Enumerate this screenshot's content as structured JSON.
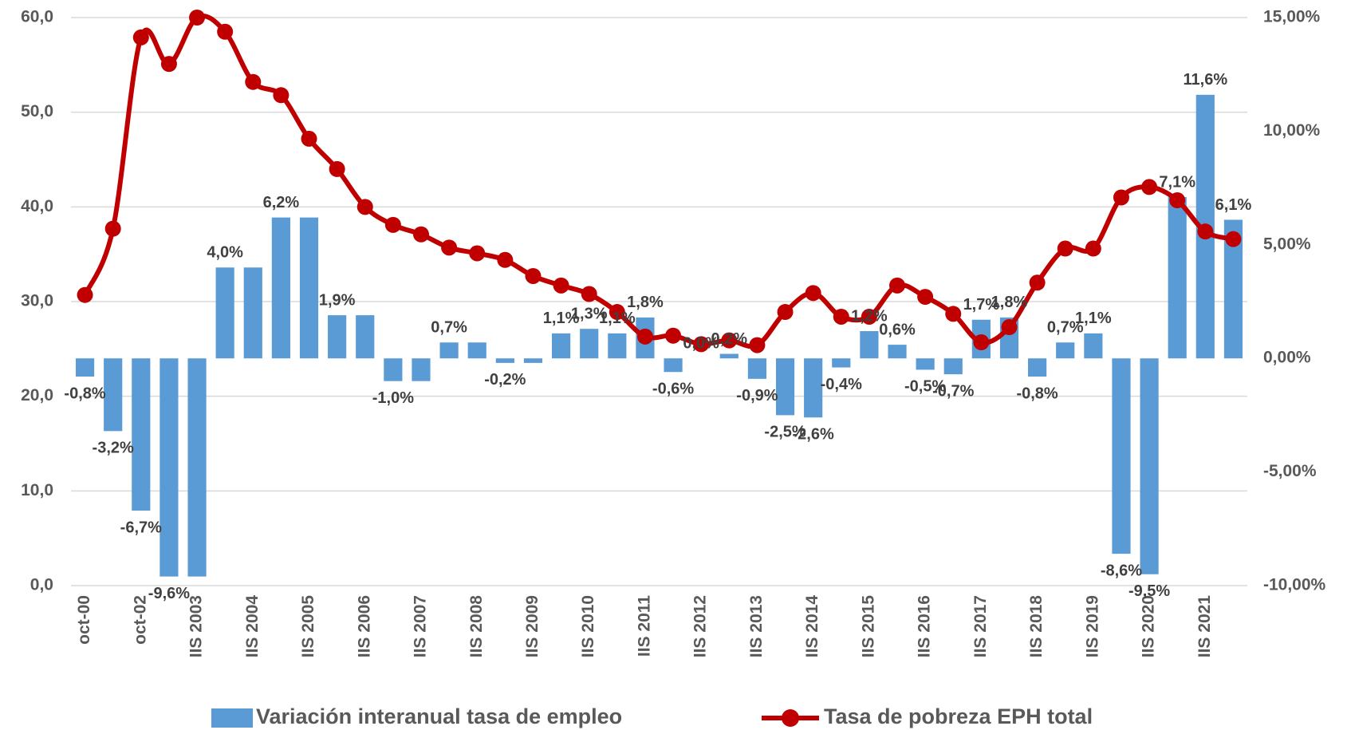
{
  "chart_data": {
    "type": "bar_line",
    "categories": [
      "oct-00",
      null,
      "oct-02",
      null,
      "IIS 2003",
      null,
      "IIS 2004",
      null,
      "IIS 2005",
      null,
      "IIS 2006",
      null,
      "IIS 2007",
      null,
      "IIS 2008",
      null,
      "IIS 2009",
      null,
      "IIS 2010",
      null,
      "IIS 2011",
      null,
      "IIS 2012",
      null,
      "IIS 2013",
      null,
      "IIS 2014",
      null,
      "IIS 2015",
      null,
      "IIS 2016",
      null,
      "IIS 2017",
      null,
      "IIS 2018",
      null,
      "IIS 2019",
      null,
      "IIS 2020",
      null,
      "IIS 2021",
      null
    ],
    "series": [
      {
        "name": "Variación interanual tasa de empleo",
        "type": "bar",
        "axis": "y2",
        "color": "#5b9bd5",
        "values": [
          -0.8,
          -3.2,
          -6.7,
          -9.6,
          -9.6,
          4.0,
          4.0,
          6.2,
          6.2,
          1.9,
          1.9,
          -1.0,
          -1.0,
          0.7,
          0.7,
          -0.2,
          -0.2,
          1.1,
          1.3,
          1.1,
          1.8,
          -0.6,
          0.0,
          0.2,
          -0.9,
          -2.5,
          -2.6,
          -0.4,
          1.2,
          0.6,
          -0.5,
          -0.7,
          1.7,
          1.8,
          -0.8,
          0.7,
          1.1,
          -8.6,
          -9.5,
          7.1,
          11.6,
          6.1
        ],
        "value_labels": [
          "-0,8%",
          "-3,2%",
          "-6,7%",
          "-9,6%",
          null,
          "4,0%",
          null,
          "6,2%",
          null,
          "1,9%",
          null,
          "-1,0%",
          null,
          "0,7%",
          null,
          "-0,2%",
          null,
          "1,1%",
          "1,3%",
          "1,1%",
          "1,8%",
          "-0,6%",
          "0,0%",
          "0,2%",
          "-0,9%",
          "-2,5%",
          "-2,6%",
          "-0,4%",
          "1,2%",
          "0,6%",
          "-0,5%",
          "-0,7%",
          "1,7%",
          "1,8%",
          "-0,8%",
          "0,7%",
          "1,1%",
          "-8,6%",
          "-9,5%",
          "7,1%",
          "11,6%",
          "6,1%"
        ]
      },
      {
        "name": "Tasa de pobreza EPH total",
        "type": "line",
        "axis": "y",
        "color": "#c00000",
        "values": [
          30.7,
          37.7,
          57.9,
          55.1,
          60.0,
          58.5,
          53.2,
          51.8,
          47.2,
          44.0,
          40.0,
          38.1,
          37.1,
          35.7,
          35.1,
          34.4,
          32.7,
          31.7,
          30.8,
          28.9,
          26.3,
          26.4,
          25.5,
          25.9,
          25.4,
          28.9,
          30.9,
          28.4,
          28.4,
          31.7,
          30.5,
          28.7,
          25.7,
          27.3,
          32.0,
          35.6,
          35.6,
          41.0,
          42.1,
          40.7,
          37.4,
          36.6
        ]
      }
    ],
    "ylim": [
      0,
      60
    ],
    "yticks": [
      {
        "value": 0,
        "label": "0,0"
      },
      {
        "value": 10,
        "label": "10,0"
      },
      {
        "value": 20,
        "label": "20,0"
      },
      {
        "value": 30,
        "label": "30,0"
      },
      {
        "value": 40,
        "label": "40,0"
      },
      {
        "value": 50,
        "label": "50,0"
      },
      {
        "value": 60,
        "label": "60,0"
      }
    ],
    "y2lim": [
      -10,
      15
    ],
    "y2ticks": [
      {
        "value": -10,
        "label": "-10,00%"
      },
      {
        "value": -5,
        "label": "-5,00%"
      },
      {
        "value": 0,
        "label": "0,00%"
      },
      {
        "value": 5,
        "label": "5,00%"
      },
      {
        "value": 10,
        "label": "10,00%"
      },
      {
        "value": 15,
        "label": "15,00%"
      }
    ],
    "grid": true,
    "legend": "bottom"
  }
}
